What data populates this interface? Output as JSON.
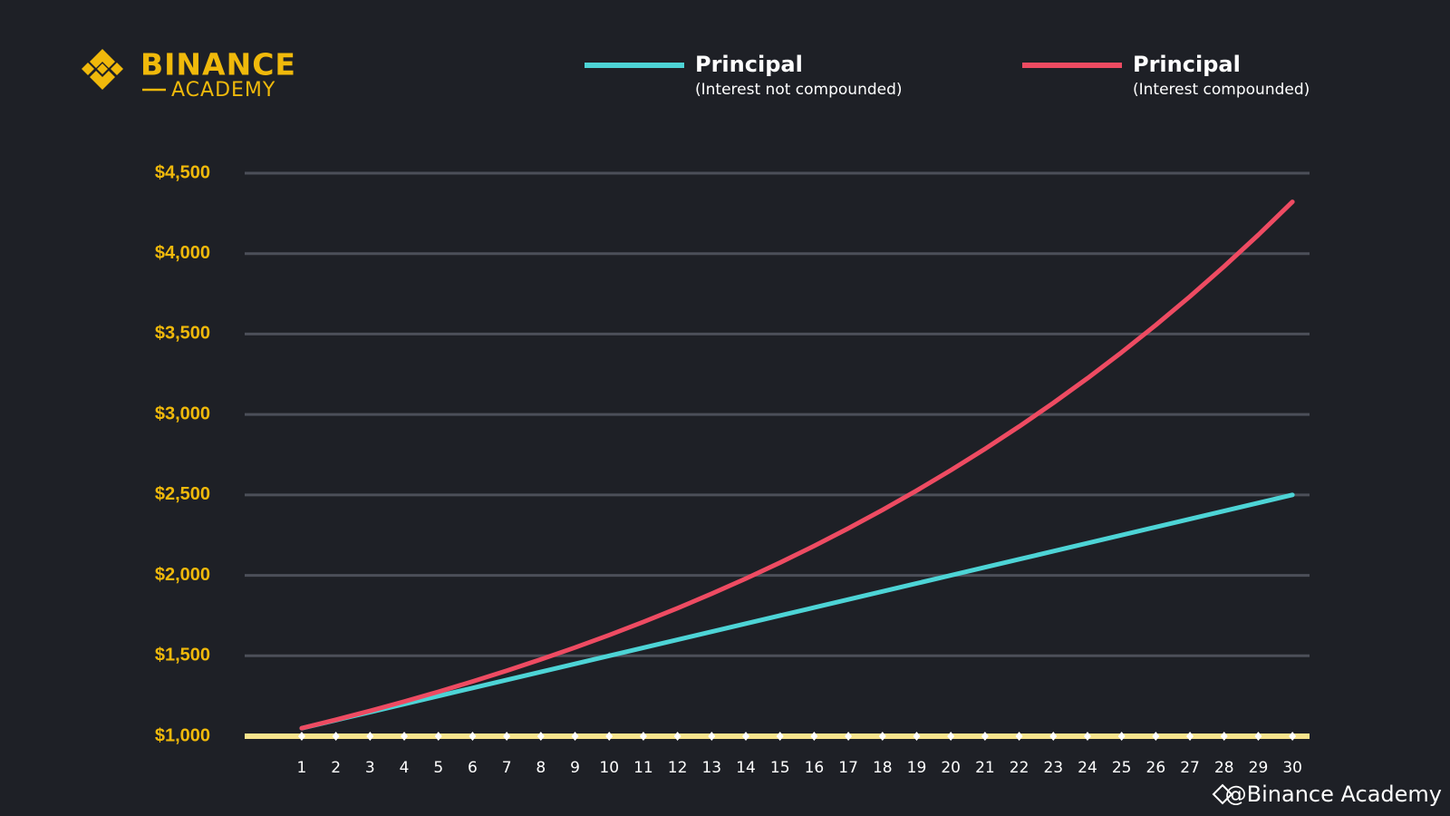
{
  "logo": {
    "line1": "BINANCE",
    "line2": "ACADEMY"
  },
  "watermark": "@Binance Academy",
  "chart_data": {
    "type": "line",
    "x": [
      1,
      2,
      3,
      4,
      5,
      6,
      7,
      8,
      9,
      10,
      11,
      12,
      13,
      14,
      15,
      16,
      17,
      18,
      19,
      20,
      21,
      22,
      23,
      24,
      25,
      26,
      27,
      28,
      29,
      30
    ],
    "series": [
      {
        "name": "Principal",
        "legend_note": "(Interest not compounded)",
        "color": "#4dd4d6",
        "values": [
          1050,
          1100,
          1150,
          1200,
          1250,
          1300,
          1350,
          1400,
          1450,
          1500,
          1550,
          1600,
          1650,
          1700,
          1750,
          1800,
          1850,
          1900,
          1950,
          2000,
          2050,
          2100,
          2150,
          2200,
          2250,
          2300,
          2350,
          2400,
          2450,
          2500
        ]
      },
      {
        "name": "Principal",
        "legend_note": "(Interest compounded)",
        "color": "#ee4b62",
        "values": [
          1050,
          1102.5,
          1157.63,
          1215.51,
          1276.28,
          1340.1,
          1407.1,
          1477.46,
          1551.33,
          1628.89,
          1710.34,
          1795.86,
          1885.65,
          1979.93,
          2078.93,
          2182.87,
          2292.02,
          2406.62,
          2526.95,
          2653.3,
          2785.96,
          2925.26,
          3071.52,
          3225.1,
          3386.35,
          3555.67,
          3733.46,
          3920.13,
          4116.14,
          4321.94
        ]
      },
      {
        "color": "#f7e38c",
        "markers": true,
        "values": [
          1000,
          1000,
          1000,
          1000,
          1000,
          1000,
          1000,
          1000,
          1000,
          1000,
          1000,
          1000,
          1000,
          1000,
          1000,
          1000,
          1000,
          1000,
          1000,
          1000,
          1000,
          1000,
          1000,
          1000,
          1000,
          1000,
          1000,
          1000,
          1000,
          1000
        ]
      }
    ],
    "xlim": [
      -0.67,
      30.5
    ],
    "xticks": [
      1,
      2,
      3,
      4,
      5,
      6,
      7,
      8,
      9,
      10,
      11,
      12,
      13,
      14,
      15,
      16,
      17,
      18,
      19,
      20,
      21,
      22,
      23,
      24,
      25,
      26,
      27,
      28,
      29,
      30
    ],
    "ylim": [
      1000,
      4500
    ],
    "yticks": [
      {
        "value": 1000,
        "label": "$1,000"
      },
      {
        "value": 1500,
        "label": "$1,500"
      },
      {
        "value": 2000,
        "label": "$2,000"
      },
      {
        "value": 2500,
        "label": "$2,500"
      },
      {
        "value": 3000,
        "label": "$3,000"
      },
      {
        "value": 3500,
        "label": "$3,500"
      },
      {
        "value": 4000,
        "label": "$4,000"
      },
      {
        "value": 4500,
        "label": "$4,500"
      }
    ],
    "grid": true
  }
}
